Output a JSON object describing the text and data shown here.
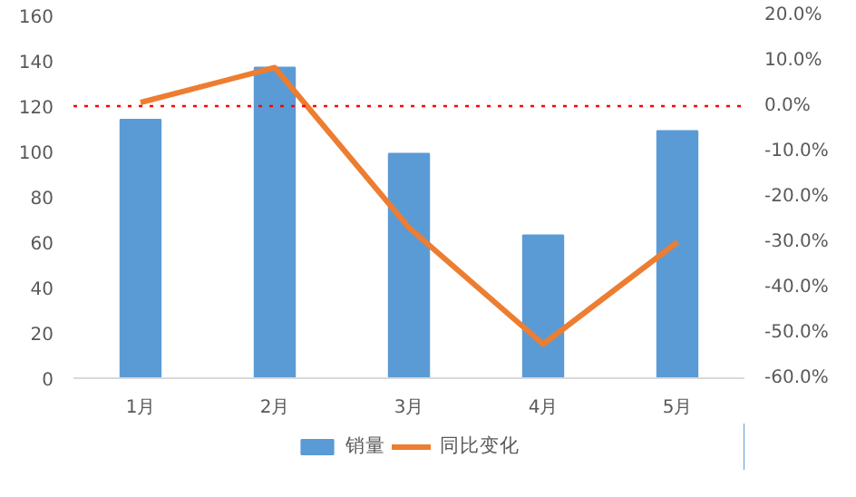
{
  "chart_data": {
    "type": "bar",
    "categories": [
      "1月",
      "2月",
      "3月",
      "4月",
      "5月"
    ],
    "series": [
      {
        "name": "销量",
        "color": "#5b9bd5",
        "values": [
          114,
          137,
          99,
          63,
          109
        ]
      },
      {
        "name": "同比变化",
        "type": "line",
        "axis": "y2",
        "color": "#ed7d31",
        "values": [
          0.8,
          8.5,
          -26.8,
          -52.5,
          -30
        ]
      }
    ],
    "ylim": [
      0,
      160
    ],
    "yticks": [
      0,
      20,
      40,
      60,
      80,
      100,
      120,
      140,
      160
    ],
    "y2lim": [
      -60,
      20
    ],
    "y2ticks": [
      {
        "value": -60,
        "label": "-60.0%"
      },
      {
        "value": -50,
        "label": "-50.0%"
      },
      {
        "value": -40,
        "label": "-40.0%"
      },
      {
        "value": -30,
        "label": "-30.0%"
      },
      {
        "value": -20,
        "label": "-20.0%"
      },
      {
        "value": -10,
        "label": "-10.0%"
      },
      {
        "value": 0,
        "label": "0.0%"
      },
      {
        "value": 10,
        "label": "10.0%"
      },
      {
        "value": 20,
        "label": "20.0%"
      }
    ],
    "ref_lines": [
      {
        "axis": "y2",
        "value": 0,
        "color": "#ff0000",
        "line_style": "dotted"
      }
    ],
    "grid": false,
    "legend": "bottom"
  }
}
